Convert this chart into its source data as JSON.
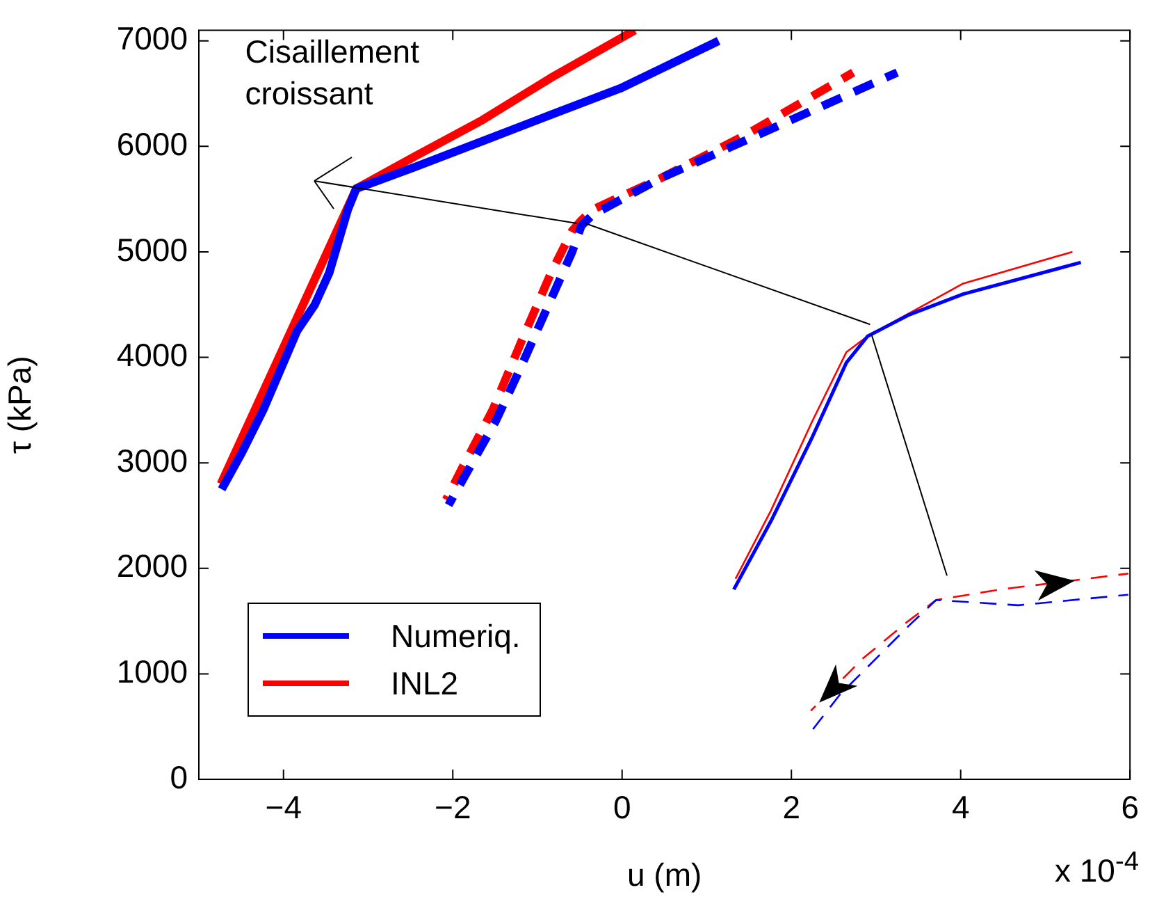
{
  "chart_data": {
    "type": "line",
    "xlabel": "u (m)",
    "ylabel": "τ (kPa)",
    "xlim": [
      -5,
      6
    ],
    "xticks": [
      -4,
      -2,
      0,
      2,
      4,
      6
    ],
    "ylim": [
      0,
      7100
    ],
    "yticks": [
      0,
      1000,
      2000,
      3000,
      4000,
      5000,
      6000,
      7000
    ],
    "grid": false,
    "legend": "bottom left",
    "marker": "none",
    "annotations": [
      "Cisaillement croissant",
      "x 10$^{-4}$"
    ],
    "series": [
      {
        "name": "Numeriq.",
        "color": "#0000ff",
        "line_style": "solid",
        "x": [
          -4.73,
          -4.49,
          -4.24,
          -4.0,
          -3.84,
          -3.63,
          -3.46,
          -3.35,
          -3.24,
          -3.14,
          -2.46,
          -1.65,
          -0.84,
          -0.02,
          1.14
        ],
        "values": [
          2750,
          3100,
          3500,
          3950,
          4250,
          4500,
          4800,
          5100,
          5400,
          5600,
          5800,
          6050,
          6300,
          6550,
          7000
        ]
      },
      {
        "name": "INL2",
        "color": "#ff0000",
        "line_style": "solid",
        "x": [
          -4.74,
          -3.14,
          -2.46,
          -1.65,
          -0.84,
          0.15
        ],
        "values": [
          2800,
          5600,
          5900,
          6250,
          6650,
          7100
        ]
      },
      {
        "color": "#0000ff",
        "line_style": "dashed",
        "x": [
          -2.05,
          -1.84,
          -1.49,
          -1.2,
          -0.84,
          -0.59,
          -0.48,
          -0.35,
          0.46,
          1.44,
          3.25
        ],
        "values": [
          2600,
          2900,
          3400,
          3900,
          4550,
          5000,
          5250,
          5350,
          5700,
          6050,
          6700
        ]
      },
      {
        "color": "#ff0000",
        "line_style": "dashed",
        "x": [
          -2.08,
          -1.89,
          -1.53,
          -1.19,
          -0.84,
          -0.59,
          -0.48,
          -0.35,
          0.46,
          1.44,
          2.73
        ],
        "values": [
          2650,
          2950,
          3500,
          4150,
          4800,
          5200,
          5300,
          5400,
          5700,
          6100,
          6700
        ]
      },
      {
        "color": "#0000ff",
        "line_style": "solid",
        "x": [
          1.32,
          1.76,
          2.25,
          2.65,
          2.9,
          3.38,
          4.03,
          5.42
        ],
        "values": [
          1800,
          2450,
          3250,
          3950,
          4200,
          4400,
          4600,
          4900
        ]
      },
      {
        "color": "#ff0000",
        "line_style": "solid",
        "x": [
          1.34,
          1.76,
          2.25,
          2.65,
          2.9,
          4.03,
          5.32
        ],
        "values": [
          1900,
          2550,
          3400,
          4050,
          4200,
          4700,
          5000
        ]
      },
      {
        "color": "#0000ff",
        "line_style": "dashed",
        "x": [
          2.23,
          2.57,
          3.38,
          3.71,
          4.68,
          5.98
        ],
        "values": [
          450,
          800,
          1450,
          1700,
          1650,
          1750
        ]
      },
      {
        "color": "#ff0000",
        "line_style": "dashed",
        "x": [
          2.23,
          2.85,
          3.38,
          3.71,
          4.47,
          5.98
        ],
        "values": [
          650,
          1150,
          1500,
          1700,
          1800,
          1950
        ]
      }
    ]
  }
}
